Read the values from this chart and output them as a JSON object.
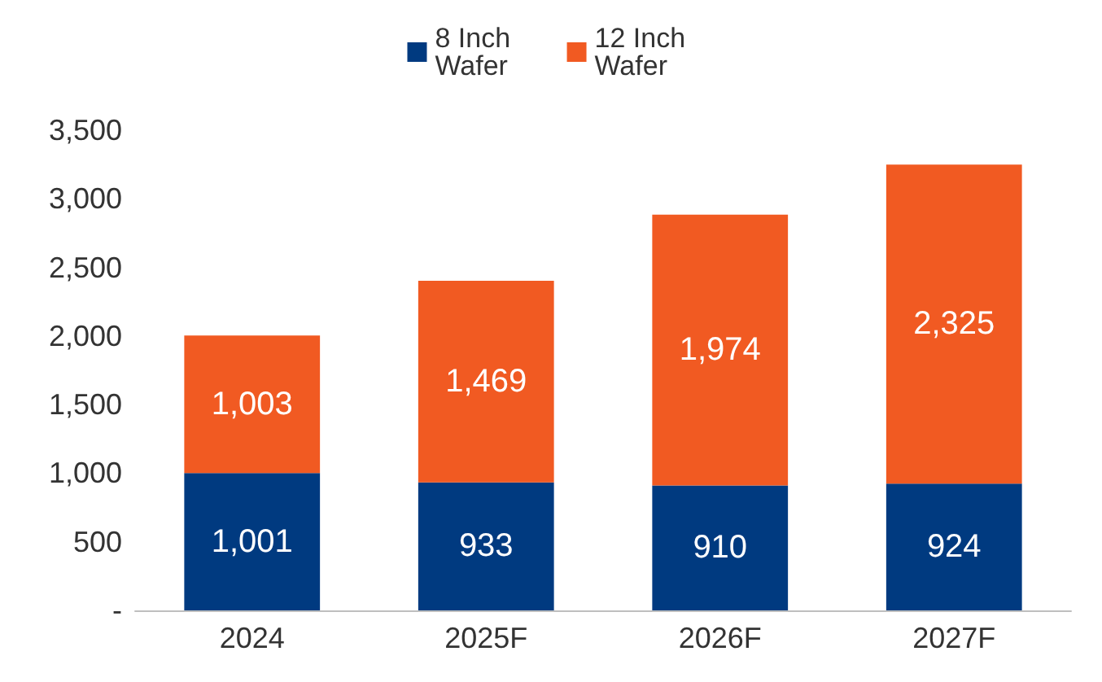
{
  "chart_data": {
    "type": "bar",
    "stacked": true,
    "categories": [
      "2024",
      "2025F",
      "2026F",
      "2027F"
    ],
    "series": [
      {
        "name": "8 Inch Wafer",
        "color": "#003a80",
        "values": [
          1001,
          933,
          910,
          924
        ],
        "value_labels": [
          "1,001",
          "933",
          "910",
          "924"
        ]
      },
      {
        "name": "12 Inch Wafer",
        "color": "#f15a22",
        "values": [
          1003,
          1469,
          1974,
          2325
        ],
        "value_labels": [
          "1,003",
          "1,469",
          "1,974",
          "2,325"
        ]
      }
    ],
    "ylim": [
      0,
      3500
    ],
    "yticks": [
      {
        "value": 0,
        "label": "-"
      },
      500,
      {
        "value": 1000,
        "label": "1,000"
      },
      {
        "value": 1500,
        "label": "1,500"
      },
      {
        "value": 2000,
        "label": "2,000"
      },
      {
        "value": 2500,
        "label": "2,500"
      },
      {
        "value": 3000,
        "label": "3,000"
      },
      {
        "value": 3500,
        "label": "3,500"
      }
    ],
    "grid": false,
    "legend": "top"
  }
}
